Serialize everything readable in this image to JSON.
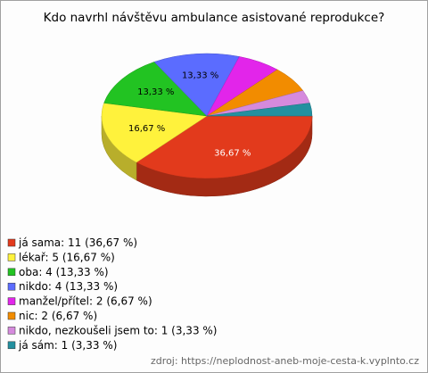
{
  "chart_data": {
    "type": "pie",
    "title": "Kdo navrhl návštěvu ambulance asistované reprodukce?",
    "categories": [
      "já sama",
      "lékař",
      "oba",
      "nikdo",
      "manžel/přítel",
      "nic",
      "nikdo, nezkoušeli jsem to",
      "já sám"
    ],
    "values": [
      36.67,
      16.67,
      13.33,
      13.33,
      6.67,
      6.67,
      3.33,
      3.33
    ],
    "value_labels": [
      "36,67 %",
      "16,67 %",
      "13,33 %",
      "13,33 %",
      null,
      null,
      null,
      null
    ],
    "legend_labels": [
      "já sama: 11 (36,67 %)",
      "lékař: 5 (16,67 %)",
      "oba: 4 (13,33 %)",
      "nikdo: 4 (13,33 %)",
      "manžel/přítel: 2 (6,67 %)",
      "nic: 2 (6,67 %)",
      "nikdo, nezkoušeli jsem to: 1 (3,33 %)",
      "já sám: 1 (3,33 %)"
    ],
    "colors": [
      "#e23a1c",
      "#fff23c",
      "#22c322",
      "#5b6cff",
      "#e225ea",
      "#f28c00",
      "#d58add",
      "#23909f"
    ],
    "legend": "bottom-left",
    "source": "zdroj: https://neplodnost-aneb-moje-cesta-k.vyplnto.cz"
  }
}
